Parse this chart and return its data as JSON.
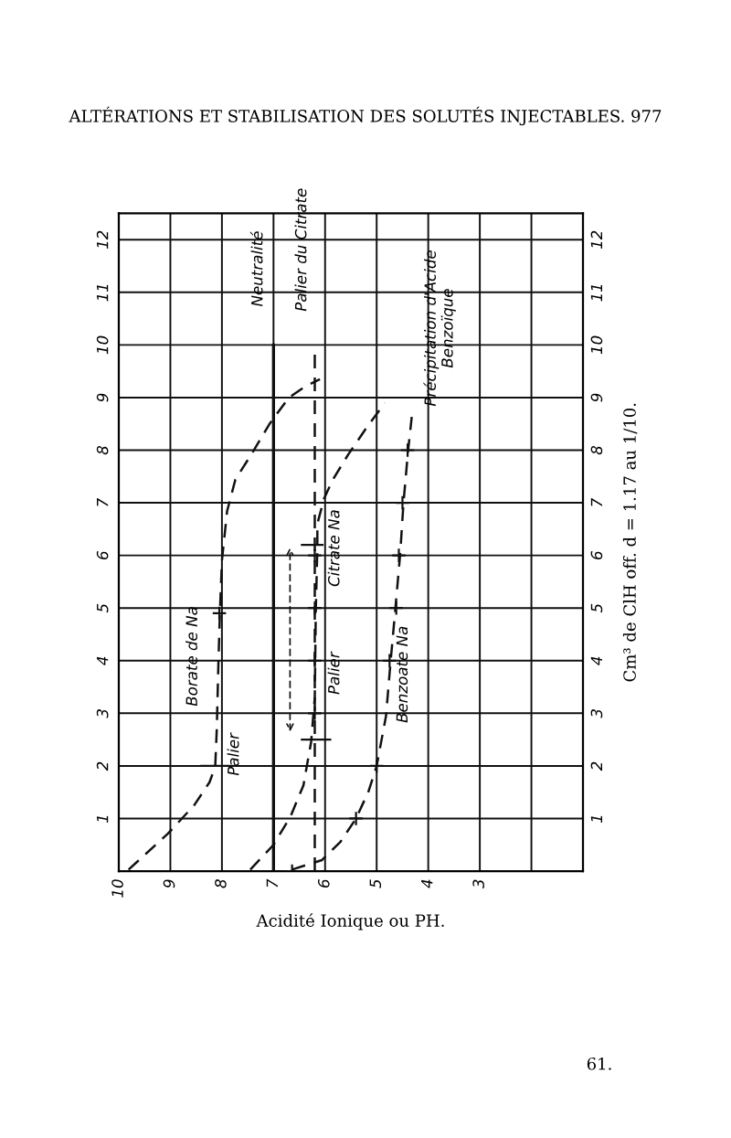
{
  "chart_data": {
    "type": "line",
    "title": "ALTÉRATIONS ET STABILISATION DES SOLUTÉS INJECTABLES. 977",
    "xlabel": "Acidité Ionique ou PH.",
    "y2label": "Cm³ de ClH off. d = 1.17 au 1/10.",
    "xlim": [
      10,
      1
    ],
    "xticks": [
      10,
      9,
      8,
      7,
      6,
      5,
      4,
      3,
      {
        "value": 2,
        "label": null
      }
    ],
    "ylim": [
      0,
      12.5
    ],
    "yticks": [
      1,
      2,
      3,
      4,
      5,
      6,
      7,
      8,
      9,
      10,
      11,
      12
    ],
    "y2lim": [
      0,
      12.5
    ],
    "y2ticks": [
      1,
      2,
      3,
      4,
      5,
      6,
      7,
      8,
      9,
      10,
      11,
      12
    ],
    "grid": true,
    "legend": false,
    "line_style": "dashed",
    "series": [
      {
        "color": "#111111",
        "x": [
          9.81,
          9.05,
          8.54,
          8.24,
          8.13,
          8.1,
          8.07,
          8.04,
          8.0,
          7.9,
          7.74,
          7.43,
          7.07,
          6.7,
          6.4,
          6.1
        ],
        "values": [
          0.03,
          0.71,
          1.25,
          1.69,
          1.99,
          2.7,
          3.89,
          4.9,
          5.9,
          6.84,
          7.44,
          7.92,
          8.51,
          9.0,
          9.2,
          9.35
        ]
      },
      {
        "color": "#111111",
        "x": [
          7.45,
          7.0,
          6.67,
          6.42,
          6.27,
          6.2,
          6.18,
          6.15,
          6.15,
          6.02,
          5.85,
          5.55,
          5.18,
          4.84
        ],
        "values": [
          0.03,
          0.5,
          1.04,
          1.63,
          2.46,
          3.3,
          4.96,
          6.14,
          6.6,
          7.08,
          7.44,
          7.92,
          8.45,
          8.9
        ]
      },
      {
        "color": "#111111",
        "x": [
          6.64,
          6.06,
          5.7,
          5.4,
          5.16,
          5.0,
          4.82,
          4.73,
          4.64,
          4.55,
          4.53,
          4.48,
          4.39,
          4.32
        ],
        "values": [
          0.03,
          0.21,
          0.56,
          1.0,
          1.51,
          2.0,
          2.94,
          3.98,
          4.96,
          5.96,
          6.24,
          7.0,
          8.0,
          8.63
        ]
      },
      {
        "color": "#111111",
        "line_style": "solid",
        "x": [
          7,
          7
        ],
        "values": [
          0,
          10
        ]
      },
      {
        "color": "#111111",
        "x": [
          6.2,
          6.2
        ],
        "values": [
          0,
          10
        ]
      },
      {
        "type": "scatter",
        "marker": "cross",
        "color": "#111111",
        "x": [
          8.05,
          6.2,
          6.2,
          6.2,
          6.2,
          6.64,
          5.4,
          5.0,
          4.75,
          4.62,
          4.57,
          4.5,
          4.4
        ],
        "values": [
          4.9,
          3,
          4,
          5,
          6,
          0,
          1,
          2,
          4,
          5,
          6,
          7,
          8
        ]
      }
    ],
    "annotations": [
      {
        "text": "Borate de Na",
        "x": 8.07,
        "y": 3.89
      },
      {
        "text": "Palier",
        "x": 8.1,
        "y": 2.7
      },
      {
        "text": "Citrate Na",
        "x": 6.15,
        "y": 6.14
      },
      {
        "text": "Palier",
        "x": 6.2,
        "y": 4
      },
      {
        "text": "Benzoate Na",
        "x": 4.73,
        "y": 3.98
      },
      {
        "text": "Précipitation d'Acide\nBenzoïque",
        "x": 4.32,
        "y": 8.63
      },
      {
        "text": "Neutralité",
        "x": 7,
        "y": 10
      },
      {
        "text": "Palier du Citrate",
        "x": 6.2,
        "y": 10
      },
      "61."
    ]
  }
}
